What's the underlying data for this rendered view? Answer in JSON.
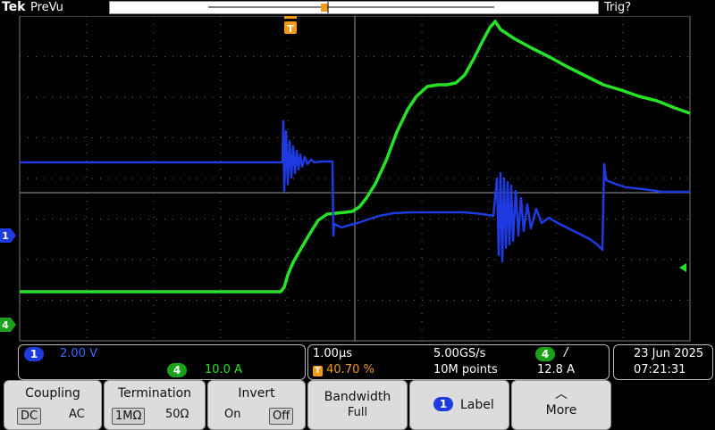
{
  "header": {
    "brand": "Tek",
    "mode": "PreVu",
    "trigger_status": "Trig?"
  },
  "markers": {
    "trigger": "T",
    "ch1": "1",
    "ch4": "4"
  },
  "status": {
    "ch1": {
      "number": "1",
      "scale": "2.00 V"
    },
    "ch4": {
      "number": "4",
      "scale": "10.0 A"
    },
    "timebase": "1.00µs",
    "trigger_pos": "40.70 %",
    "sample_rate": "5.00GS/s",
    "record": "10M points",
    "trig_source": "4",
    "trig_slope": "/",
    "trig_level": "12.8 A",
    "date": "23 Jun  2025",
    "time": "07:21:31"
  },
  "softkeys": {
    "coupling": {
      "title": "Coupling",
      "opt1": "DC",
      "opt2": "AC"
    },
    "termination": {
      "title": "Termination",
      "opt1": "1MΩ",
      "opt2": "50Ω"
    },
    "invert": {
      "title": "Invert",
      "opt1": "On",
      "opt2": "Off"
    },
    "bandwidth": {
      "title": "Bandwidth",
      "value": "Full"
    },
    "label": {
      "badge": "1",
      "text": "Label"
    },
    "more": {
      "text": "More"
    }
  },
  "colors": {
    "ch1": "#1f3be0",
    "ch4": "#27e327",
    "trigger": "#f29a1a"
  }
}
